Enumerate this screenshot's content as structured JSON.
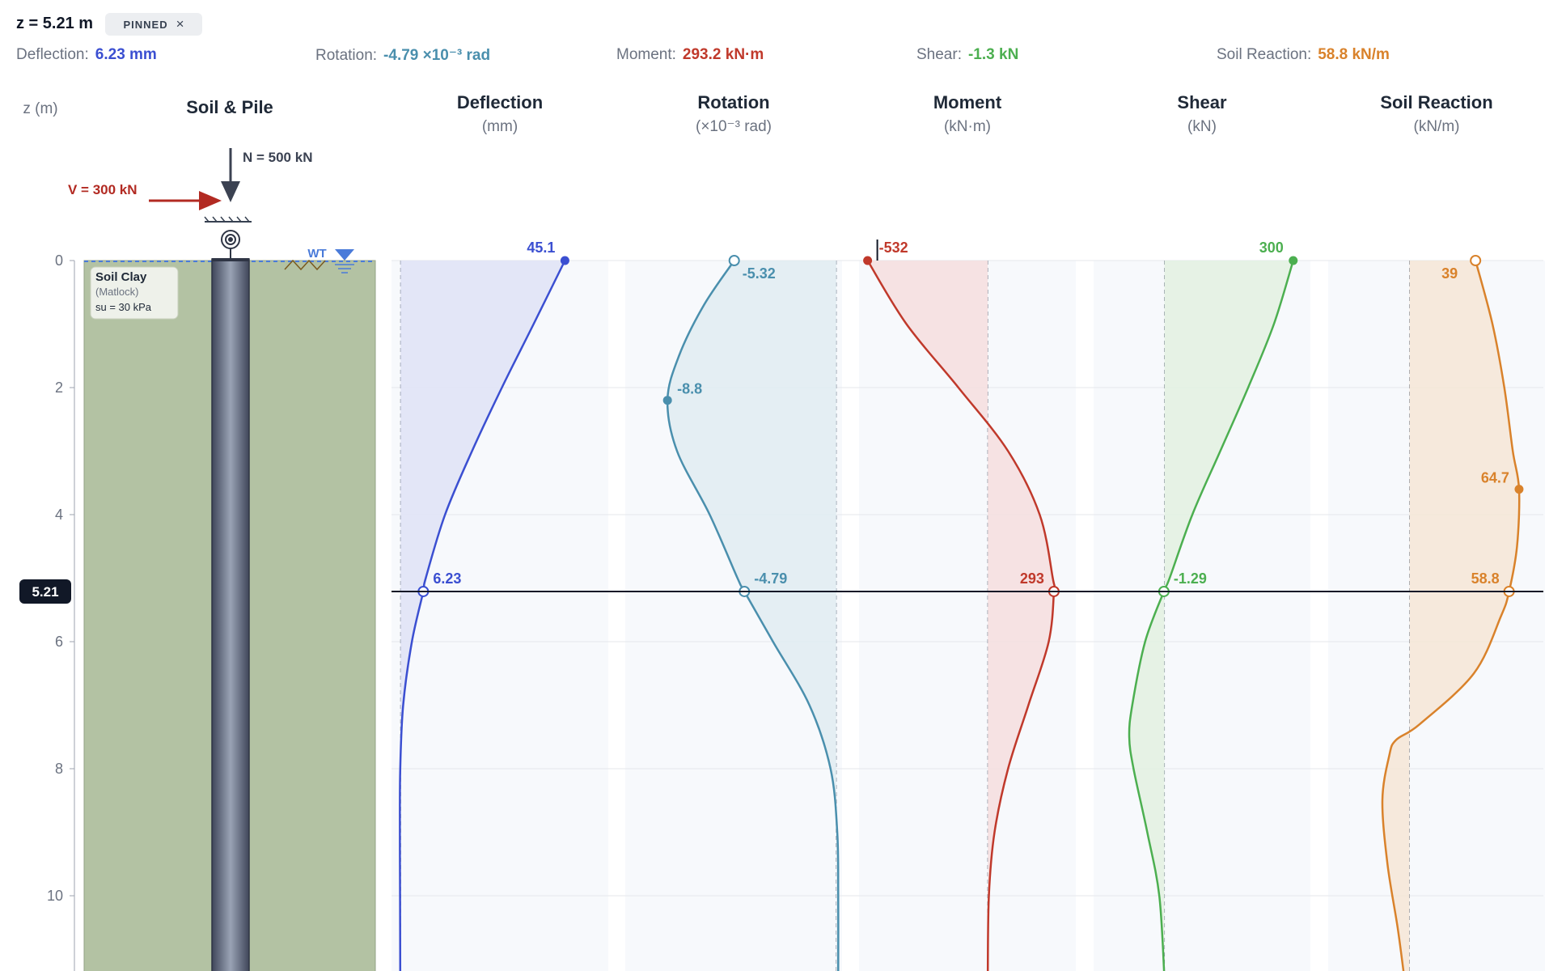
{
  "header": {
    "z_title": "z = 5.21 m",
    "pinned_label": "PINNED",
    "close_glyph": "×",
    "readouts": [
      {
        "label": "Deflection:",
        "value": "6.23 mm",
        "color": "#3b4fd1"
      },
      {
        "label": "Rotation:",
        "value": "-4.79 ×10⁻³ rad",
        "color": "#4a8fad"
      },
      {
        "label": "Moment:",
        "value": "293.2 kN·m",
        "color": "#c0392b"
      },
      {
        "label": "Shear:",
        "value": "-1.3 kN",
        "color": "#4caf50"
      },
      {
        "label": "Soil Reaction:",
        "value": "58.8 kN/m",
        "color": "#d9822b"
      }
    ]
  },
  "axis": {
    "label": "z (m)",
    "ticks": [
      "0",
      "2",
      "4",
      "6",
      "8",
      "10"
    ],
    "tick_values": [
      0,
      2,
      4,
      6,
      8,
      10
    ],
    "z_min": 0,
    "z_max": 11.3,
    "cursor_z": 5.21,
    "cursor_label": "5.21"
  },
  "soil_pile": {
    "title": "Soil & Pile",
    "axial_load": "N = 500 kN",
    "lateral_load": "V = 300 kN",
    "water_table_label": "WT",
    "layer": {
      "name": "Soil Clay",
      "model": "(Matlock)",
      "strength": "su = 30 kPa"
    },
    "colors": {
      "soil": "#b3c2a3",
      "pile": "#6b7284",
      "load_lateral": "#b22a22",
      "load_axial": "#3b4252",
      "water": "#4a7bd9"
    }
  },
  "chart_data": [
    {
      "type": "line",
      "name": "deflection",
      "title": "Deflection",
      "unit": "(mm)",
      "color": "#3b4fd1",
      "fill": "#dfe3f6",
      "x_range": [
        -2.5,
        57
      ],
      "z": [
        0,
        1,
        2,
        3,
        4,
        5,
        5.21,
        6,
        7,
        8,
        9,
        10,
        11.3
      ],
      "x": [
        45.1,
        36.5,
        27.8,
        19.6,
        12.2,
        6.9,
        6.23,
        3.1,
        0.7,
        -0.1,
        -0.2,
        -0.15,
        -0.1
      ],
      "labels": [
        {
          "z": 0,
          "text": "45.1",
          "marker": "filled"
        },
        {
          "z": 5.21,
          "text": "6.23",
          "marker": "open"
        }
      ]
    },
    {
      "type": "line",
      "name": "rotation",
      "title": "Rotation",
      "unit": "(×10⁻³ rad)",
      "color": "#4a8fad",
      "fill": "#e0ecf1",
      "x_range": [
        -11,
        0.3
      ],
      "z": [
        0,
        0.7,
        1.5,
        2.2,
        3,
        4,
        5,
        5.21,
        6,
        7,
        8,
        9,
        10,
        11.3
      ],
      "x": [
        -5.32,
        -6.9,
        -8.2,
        -8.8,
        -8.3,
        -6.6,
        -5.15,
        -4.79,
        -3.3,
        -1.4,
        -0.3,
        0.05,
        0.1,
        0.1
      ],
      "labels": [
        {
          "z": 0,
          "text": "-5.32",
          "marker": "open"
        },
        {
          "z": 2.2,
          "text": "-8.8",
          "marker": "filled"
        },
        {
          "z": 5.21,
          "text": "-4.79",
          "marker": "open"
        }
      ]
    },
    {
      "type": "line",
      "name": "moment",
      "title": "Moment",
      "unit": "(kN·m)",
      "color": "#c0392b",
      "fill": "#f6dede",
      "x_range": [
        -570,
        390
      ],
      "z": [
        0,
        1,
        2,
        3,
        4,
        5,
        5.21,
        6,
        7,
        8,
        9,
        10,
        11.3
      ],
      "x": [
        -532,
        -360,
        -130,
        90,
        230,
        288,
        293,
        270,
        180,
        90,
        30,
        5,
        0
      ],
      "labels": [
        {
          "z": 0,
          "text": "-532",
          "marker": "filled"
        },
        {
          "z": 5.21,
          "text": "293",
          "marker": "open"
        }
      ]
    },
    {
      "type": "line",
      "name": "shear",
      "title": "Shear",
      "unit": "(kN)",
      "color": "#4caf50",
      "fill": "#e3f1e1",
      "x_range": [
        -165,
        340
      ],
      "z": [
        0,
        1,
        2,
        3,
        4,
        5,
        5.21,
        6,
        7,
        7.5,
        8,
        9,
        10,
        11.3
      ],
      "x": [
        300,
        255,
        195,
        130,
        65,
        12,
        -1.29,
        -45,
        -75,
        -82,
        -72,
        -40,
        -12,
        0
      ],
      "labels": [
        {
          "z": 0,
          "text": "300",
          "marker": "filled"
        },
        {
          "z": 5.21,
          "text": "-1.29",
          "marker": "open"
        }
      ]
    },
    {
      "type": "line",
      "name": "soil_reaction",
      "title": "Soil Reaction",
      "unit": "(kN/m)",
      "color": "#d9822b",
      "fill": "#f6e6d6",
      "x_range": [
        -48,
        80
      ],
      "z": [
        0,
        1,
        2,
        3,
        3.6,
        4.5,
        5.21,
        5.6,
        6.5,
        7.3,
        7.55,
        7.8,
        8.5,
        9.5,
        10.5,
        11.3
      ],
      "x": [
        39,
        49,
        56,
        61,
        64.7,
        63.5,
        58.8,
        54,
        38,
        6,
        -8,
        -12,
        -16,
        -13,
        -7,
        -3
      ],
      "labels": [
        {
          "z": 0,
          "text": "39",
          "marker": "open"
        },
        {
          "z": 3.6,
          "text": "64.7",
          "marker": "filled"
        },
        {
          "z": 5.21,
          "text": "58.8",
          "marker": "open"
        }
      ]
    }
  ]
}
